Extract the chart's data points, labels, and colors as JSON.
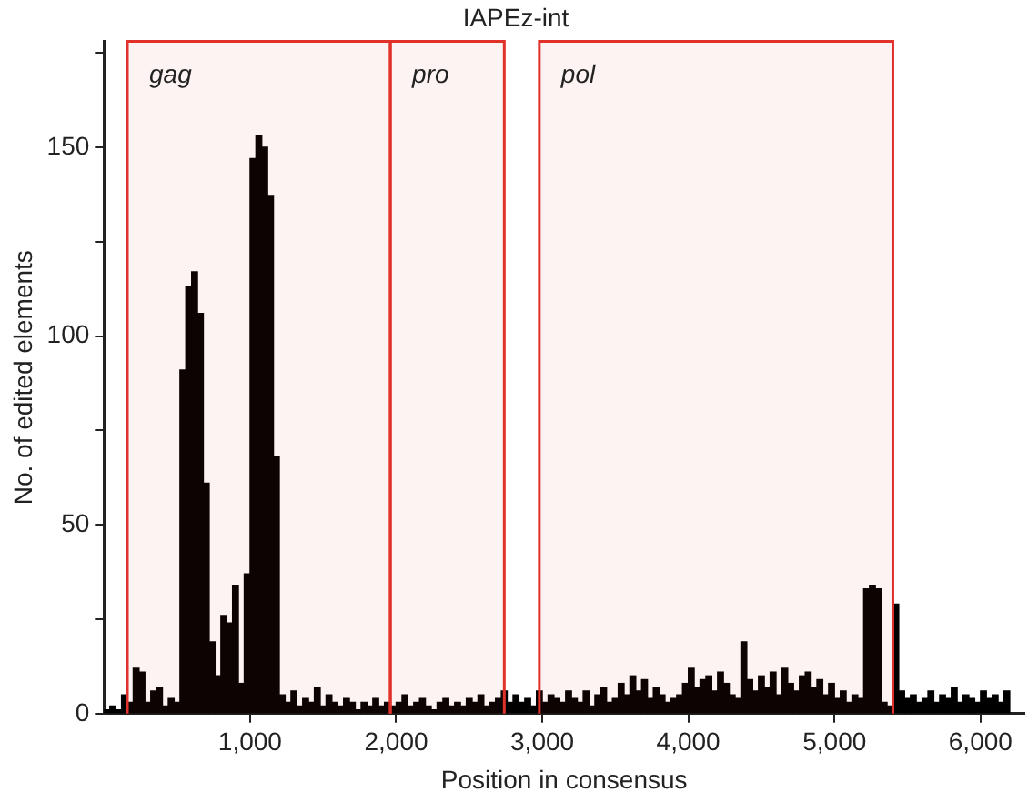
{
  "chart_data": {
    "type": "histogram",
    "title": "IAPEz-int",
    "xlabel": "Position in consensus",
    "ylabel": "No. of edited elements",
    "color": "#000000",
    "bins": [
      0,
      40,
      80,
      120,
      160,
      200,
      240,
      280,
      320,
      360,
      400,
      440,
      480,
      520,
      560,
      600,
      640,
      680,
      720,
      760,
      800,
      840,
      880,
      920,
      960,
      1000,
      1040,
      1080,
      1120,
      1160,
      1200,
      1240,
      1280,
      1320,
      1360,
      1400,
      1440,
      1480,
      1520,
      1560,
      1600,
      1640,
      1680,
      1720,
      1760,
      1800,
      1840,
      1880,
      1920,
      1960,
      2000,
      2040,
      2080,
      2120,
      2160,
      2200,
      2240,
      2280,
      2320,
      2360,
      2400,
      2440,
      2480,
      2520,
      2560,
      2600,
      2640,
      2680,
      2720,
      2760,
      2800,
      2840,
      2880,
      2920,
      2960,
      3000,
      3040,
      3080,
      3120,
      3160,
      3200,
      3240,
      3280,
      3320,
      3360,
      3400,
      3440,
      3480,
      3520,
      3560,
      3600,
      3640,
      3680,
      3720,
      3760,
      3800,
      3840,
      3880,
      3920,
      3960,
      4000,
      4040,
      4080,
      4120,
      4160,
      4200,
      4240,
      4280,
      4320,
      4360,
      4400,
      4440,
      4480,
      4520,
      4560,
      4600,
      4640,
      4680,
      4720,
      4760,
      4800,
      4840,
      4880,
      4920,
      4960,
      5000,
      5040,
      5080,
      5120,
      5160,
      5200,
      5240,
      5280,
      5320,
      5360,
      5400,
      5440,
      5480,
      5520,
      5560,
      5600,
      5640,
      5680,
      5720,
      5760,
      5800,
      5840,
      5880,
      5920,
      5960,
      6000,
      6040,
      6080,
      6120,
      6160,
      6200
    ],
    "values": [
      1,
      2,
      1,
      5,
      3,
      12,
      11,
      3,
      6,
      7,
      2,
      4,
      3,
      91,
      113,
      117,
      106,
      61,
      19,
      10,
      26,
      24,
      34,
      8,
      37,
      147,
      153,
      150,
      137,
      68,
      5,
      3,
      6,
      2,
      4,
      3,
      7,
      2,
      5,
      3,
      2,
      4,
      3,
      1,
      3,
      2,
      4,
      2,
      3,
      2,
      3,
      5,
      2,
      3,
      4,
      2,
      1,
      3,
      4,
      2,
      3,
      2,
      4,
      3,
      5,
      2,
      3,
      4,
      6,
      3,
      5,
      3,
      4,
      2,
      6,
      3,
      5,
      4,
      3,
      6,
      4,
      3,
      6,
      2,
      5,
      7,
      3,
      4,
      8,
      5,
      10,
      6,
      9,
      4,
      7,
      5,
      3,
      4,
      5,
      8,
      12,
      7,
      9,
      10,
      6,
      11,
      8,
      5,
      4,
      19,
      9,
      6,
      10,
      7,
      11,
      5,
      12,
      8,
      6,
      10,
      11,
      7,
      9,
      5,
      8,
      4,
      6,
      3,
      5,
      4,
      33,
      34,
      33,
      3,
      2,
      29,
      6,
      4,
      5,
      3,
      4,
      6,
      3,
      5,
      4,
      7,
      3,
      5,
      4,
      3,
      6,
      4,
      5,
      3,
      6
    ],
    "xlim": [
      0,
      6300
    ],
    "xticks": [
      {
        "value": 1000,
        "label": "1,000"
      },
      {
        "value": 2000,
        "label": "2,000"
      },
      {
        "value": 3000,
        "label": "3,000"
      },
      {
        "value": 4000,
        "label": "4,000"
      },
      {
        "value": 5000,
        "label": "5,000"
      },
      {
        "value": 6000,
        "label": "6,000"
      }
    ],
    "ylim": [
      0,
      178
    ],
    "yticks": [
      0,
      {
        "value": 25,
        "label": null
      },
      50,
      {
        "value": 75,
        "label": null
      },
      100,
      {
        "value": 125,
        "label": null
      },
      150,
      {
        "value": 175,
        "label": null
      }
    ],
    "bands": [
      {
        "axis": "x",
        "from": 160,
        "to": 1960,
        "label": "gag",
        "color": "#e0322a"
      },
      {
        "axis": "x",
        "from": 1960,
        "to": 2740,
        "label": "pro",
        "color": "#e0322a"
      },
      {
        "axis": "x",
        "from": 2980,
        "to": 5400,
        "label": "pol",
        "color": "#e0322a"
      }
    ]
  }
}
